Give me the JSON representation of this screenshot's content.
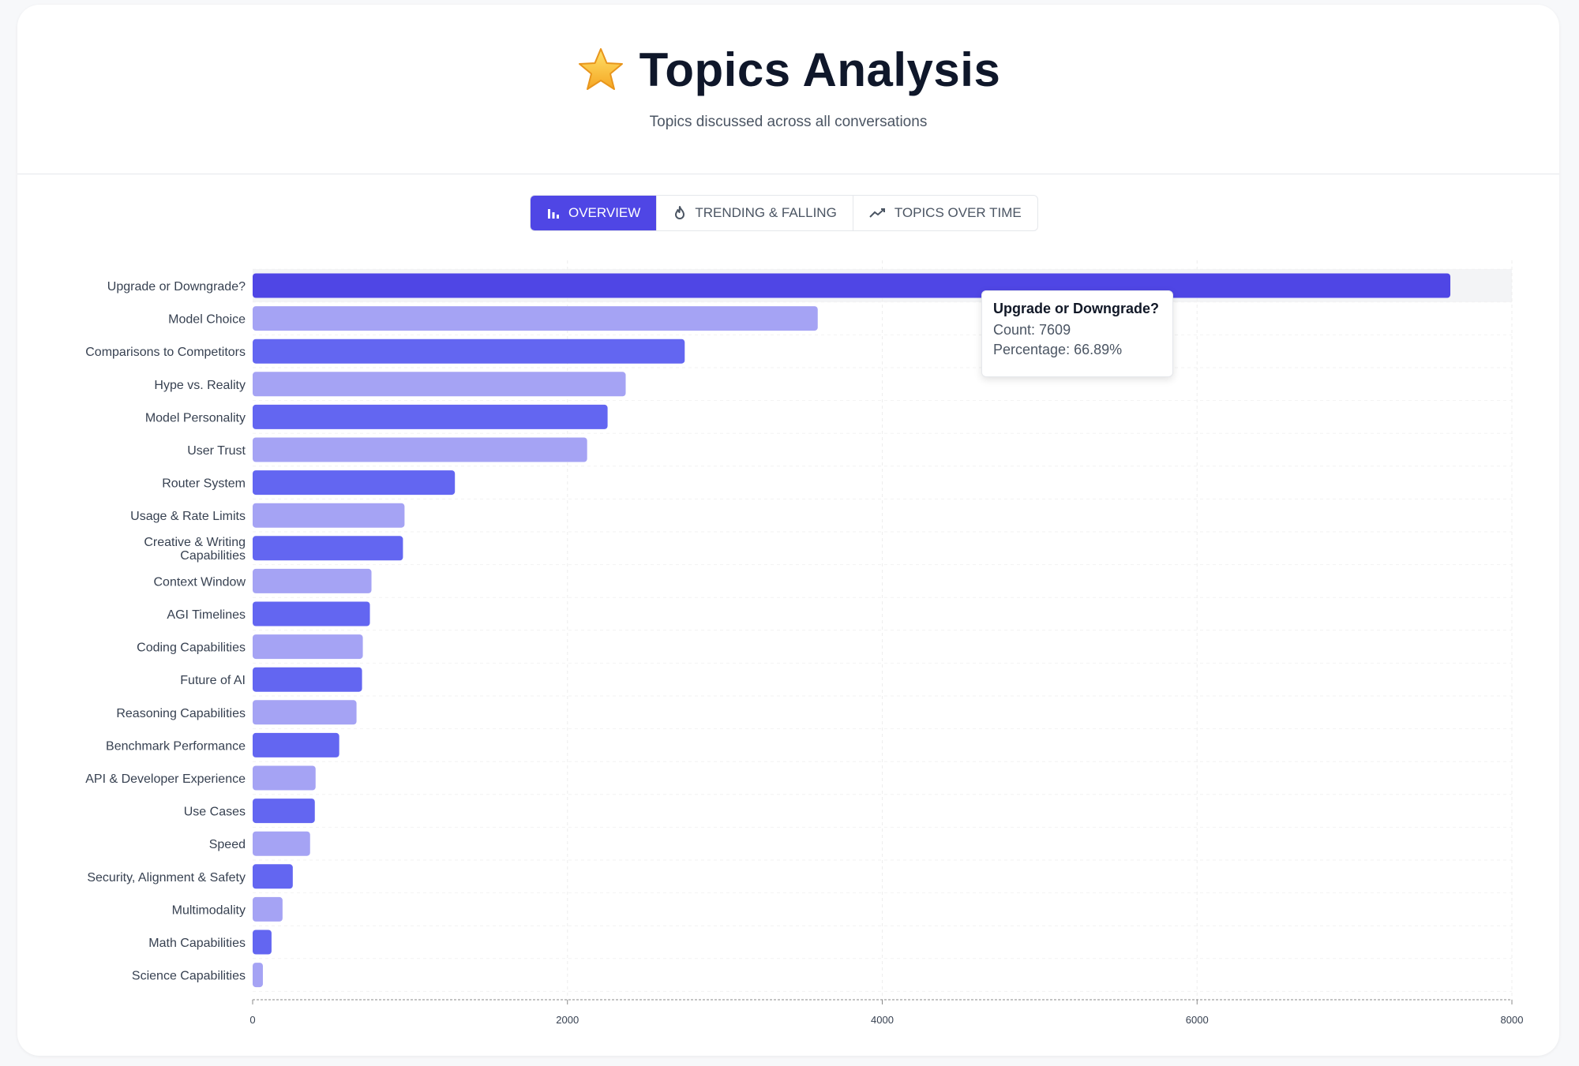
{
  "header": {
    "star_icon": "star-icon",
    "title": "Topics Analysis",
    "subtitle": "Topics discussed across all conversations"
  },
  "tabs": [
    {
      "label": "OVERVIEW",
      "icon": "bar-chart-icon",
      "active": true
    },
    {
      "label": "TRENDING & FALLING",
      "icon": "flame-icon",
      "active": false
    },
    {
      "label": "TOPICS OVER TIME",
      "icon": "trend-line-icon",
      "active": false
    }
  ],
  "tooltip": {
    "title": "Upgrade or Downgrade?",
    "count_line": "Count: 7609",
    "percentage_line": "Percentage: 66.89%"
  },
  "colors": {
    "accent": "#4f46e5",
    "bar_dark": "#6366f1",
    "bar_light": "#a5a3f4",
    "highlight_band": "#f3f4f6"
  },
  "chart_data": {
    "type": "bar",
    "orientation": "horizontal",
    "categories": [
      "Upgrade or Downgrade?",
      "Model Choice",
      "Comparisons to Competitors",
      "Hype vs. Reality",
      "Model Personality",
      "User Trust",
      "Router System",
      "Usage & Rate Limits",
      "Creative & Writing Capabilities",
      "Context Window",
      "AGI Timelines",
      "Coding Capabilities",
      "Future of AI",
      "Reasoning Capabilities",
      "Benchmark Performance",
      "API & Developer Experience",
      "Use Cases",
      "Speed",
      "Security, Alignment & Safety",
      "Multimodality",
      "Math Capabilities",
      "Science Capabilities"
    ],
    "values": [
      7609,
      3590,
      2745,
      2370,
      2255,
      2125,
      1285,
      965,
      955,
      755,
      745,
      700,
      695,
      660,
      550,
      400,
      395,
      365,
      255,
      190,
      120,
      65
    ],
    "highlighted_index": 0,
    "xlim": [
      0,
      8000
    ],
    "xticks": [
      0,
      2000,
      4000,
      6000,
      8000
    ],
    "grid": true
  }
}
